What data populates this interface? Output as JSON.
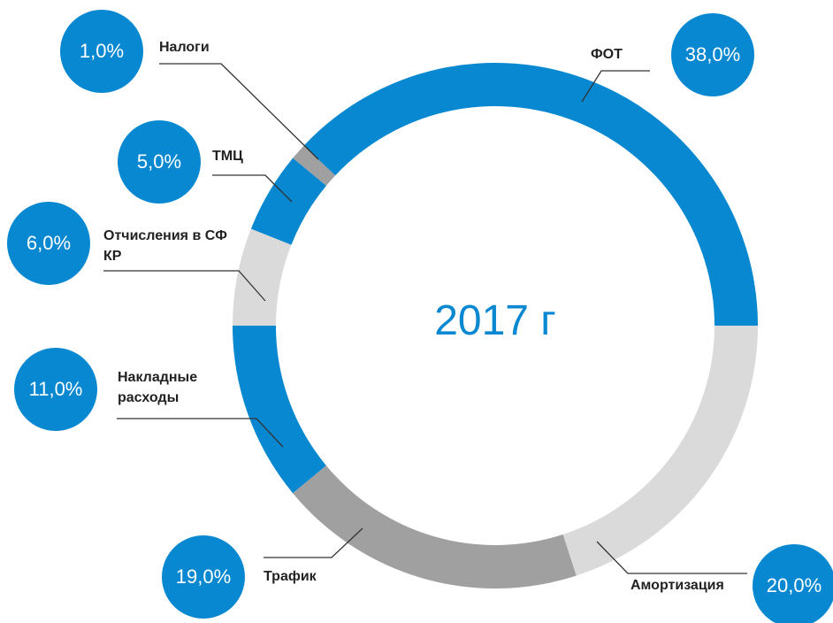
{
  "chart_data": {
    "type": "donut",
    "title": "2017 г",
    "categories": [
      "ФОТ",
      "Амортизация",
      "Трафик",
      "Накладные расходы",
      "Отчисления в СФ КР",
      "ТМЦ",
      "Налоги"
    ],
    "values": [
      38,
      20,
      19,
      11,
      6,
      5,
      1
    ],
    "value_labels": [
      "38,0%",
      "20,0%",
      "19,0%",
      "11,0%",
      "6,0%",
      "5,0%",
      "1,0%"
    ],
    "colors": [
      "#0788d0",
      "#dadada",
      "#a0a0a0",
      "#0788d0",
      "#dadada",
      "#0788d0",
      "#a0a0a0"
    ],
    "badge_color": "#0788d0"
  }
}
